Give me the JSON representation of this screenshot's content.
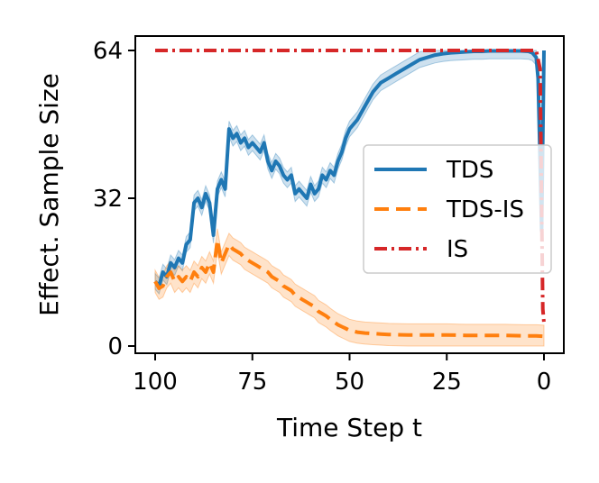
{
  "chart_data": {
    "type": "line",
    "title": "",
    "xlabel": "Time Step t",
    "ylabel": "Effect. Sample Size",
    "xlim": [
      100,
      0
    ],
    "ylim": [
      0,
      64
    ],
    "xticks": [
      100,
      75,
      50,
      25,
      0
    ],
    "yticks": [
      0,
      32,
      64
    ],
    "legend_position": "center-right",
    "series": [
      {
        "name": "TDS",
        "color": "#1f77b4",
        "style": "solid",
        "band": 1.7,
        "points": [
          [
            100,
            14
          ],
          [
            99,
            13
          ],
          [
            98,
            16
          ],
          [
            97,
            15
          ],
          [
            96,
            18
          ],
          [
            95,
            17
          ],
          [
            94,
            19
          ],
          [
            93,
            18
          ],
          [
            92,
            22
          ],
          [
            91,
            23
          ],
          [
            90,
            31
          ],
          [
            89,
            32
          ],
          [
            88,
            30
          ],
          [
            87,
            33
          ],
          [
            86,
            31
          ],
          [
            85,
            24
          ],
          [
            84,
            34
          ],
          [
            83,
            36
          ],
          [
            82,
            34
          ],
          [
            81,
            47
          ],
          [
            80,
            45
          ],
          [
            79,
            46
          ],
          [
            78,
            44
          ],
          [
            77,
            45
          ],
          [
            76,
            43
          ],
          [
            75,
            44
          ],
          [
            74,
            43
          ],
          [
            73,
            42
          ],
          [
            72,
            44
          ],
          [
            71,
            40
          ],
          [
            70,
            38
          ],
          [
            69,
            40
          ],
          [
            68,
            39
          ],
          [
            67,
            37
          ],
          [
            66,
            36
          ],
          [
            65,
            37
          ],
          [
            64,
            33
          ],
          [
            63,
            34
          ],
          [
            62,
            33
          ],
          [
            61,
            32
          ],
          [
            60,
            35
          ],
          [
            59,
            33
          ],
          [
            58,
            34
          ],
          [
            57,
            37
          ],
          [
            56,
            36
          ],
          [
            55,
            38
          ],
          [
            54,
            37
          ],
          [
            53,
            40
          ],
          [
            52,
            42
          ],
          [
            51,
            45
          ],
          [
            50,
            47
          ],
          [
            48,
            49
          ],
          [
            46,
            52
          ],
          [
            44,
            55
          ],
          [
            42,
            57
          ],
          [
            40,
            58
          ],
          [
            38,
            59
          ],
          [
            36,
            60
          ],
          [
            34,
            61
          ],
          [
            32,
            62
          ],
          [
            30,
            62.5
          ],
          [
            28,
            63
          ],
          [
            26,
            63.3
          ],
          [
            24,
            63.5
          ],
          [
            22,
            63.6
          ],
          [
            20,
            63.7
          ],
          [
            18,
            63.8
          ],
          [
            16,
            63.8
          ],
          [
            14,
            63.9
          ],
          [
            12,
            63.9
          ],
          [
            10,
            63.9
          ],
          [
            8,
            63.9
          ],
          [
            6,
            63.9
          ],
          [
            4,
            63.8
          ],
          [
            3,
            63.5
          ],
          [
            2,
            62.5
          ],
          [
            1.5,
            58
          ],
          [
            1,
            40
          ],
          [
            0.6,
            25
          ],
          [
            0.3,
            45
          ],
          [
            0,
            64
          ]
        ]
      },
      {
        "name": "TDS-IS",
        "color": "#ff7f0e",
        "style": "dashed",
        "band": 2.4,
        "points": [
          [
            100,
            14
          ],
          [
            99,
            12.5
          ],
          [
            98,
            13
          ],
          [
            97,
            15
          ],
          [
            96,
            16
          ],
          [
            95,
            14
          ],
          [
            94,
            15
          ],
          [
            93,
            14
          ],
          [
            92,
            15
          ],
          [
            91,
            14
          ],
          [
            90,
            16
          ],
          [
            89,
            15
          ],
          [
            88,
            17
          ],
          [
            87,
            16
          ],
          [
            86,
            18
          ],
          [
            85,
            16
          ],
          [
            84,
            23
          ],
          [
            83,
            18
          ],
          [
            82,
            20
          ],
          [
            81,
            22
          ],
          [
            80,
            21
          ],
          [
            79,
            20.5
          ],
          [
            78,
            20
          ],
          [
            77,
            19
          ],
          [
            76,
            18.5
          ],
          [
            75,
            18
          ],
          [
            74,
            17.5
          ],
          [
            73,
            17
          ],
          [
            72,
            16.5
          ],
          [
            71,
            16
          ],
          [
            70,
            15
          ],
          [
            69,
            14.5
          ],
          [
            68,
            14
          ],
          [
            67,
            13
          ],
          [
            66,
            12.5
          ],
          [
            65,
            12
          ],
          [
            64,
            11
          ],
          [
            63,
            10.5
          ],
          [
            62,
            10
          ],
          [
            61,
            9.5
          ],
          [
            60,
            9
          ],
          [
            59,
            8.5
          ],
          [
            58,
            7.5
          ],
          [
            57,
            7
          ],
          [
            56,
            6.5
          ],
          [
            55,
            5.8
          ],
          [
            54,
            5.2
          ],
          [
            53,
            4.6
          ],
          [
            52,
            4.2
          ],
          [
            51,
            3.8
          ],
          [
            50,
            3.4
          ],
          [
            48,
            3.0
          ],
          [
            46,
            2.8
          ],
          [
            44,
            2.7
          ],
          [
            42,
            2.6
          ],
          [
            40,
            2.5
          ],
          [
            35,
            2.4
          ],
          [
            30,
            2.4
          ],
          [
            25,
            2.4
          ],
          [
            20,
            2.3
          ],
          [
            15,
            2.3
          ],
          [
            10,
            2.3
          ],
          [
            5,
            2.2
          ],
          [
            2,
            2.2
          ],
          [
            0,
            2.1
          ]
        ]
      },
      {
        "name": "IS",
        "color": "#d62728",
        "style": "dashdot",
        "band": 0,
        "points": [
          [
            100,
            64
          ],
          [
            75,
            64
          ],
          [
            50,
            64
          ],
          [
            25,
            64
          ],
          [
            5,
            64
          ],
          [
            2,
            64
          ],
          [
            1,
            60
          ],
          [
            0.6,
            30
          ],
          [
            0.3,
            8
          ],
          [
            0,
            5
          ]
        ]
      }
    ]
  }
}
